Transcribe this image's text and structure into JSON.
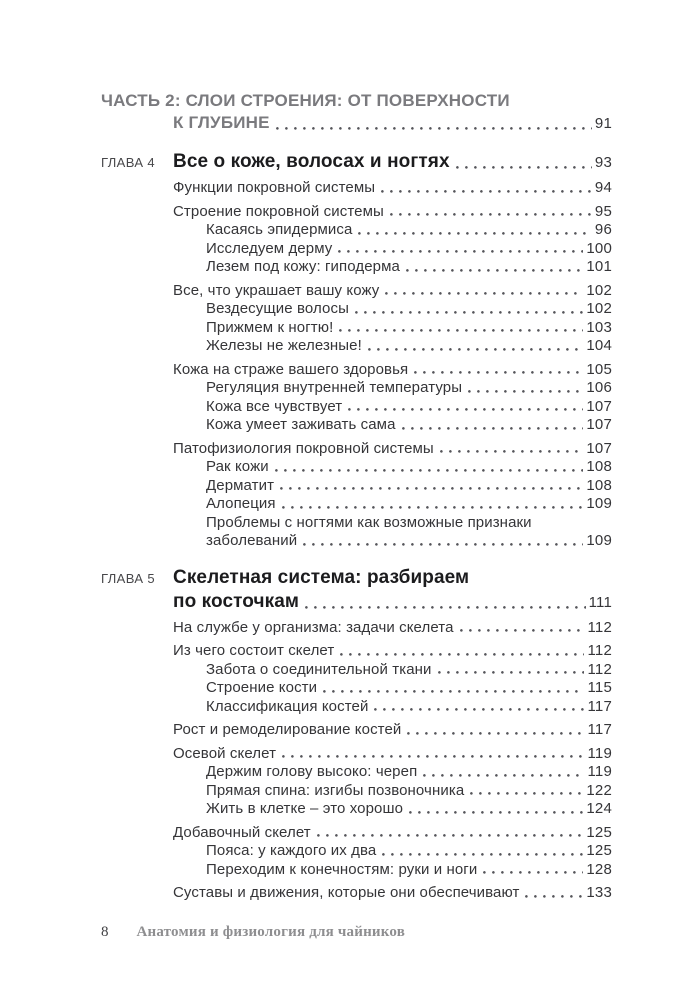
{
  "colors": {
    "part_color": "#7a7a7e",
    "title_color": "#1c1c1e",
    "label_color": "#47474a",
    "entry_color": "#353538",
    "dot_color": "#55555a",
    "folio_color": "#3f3f42",
    "running_title_color": "#8e8e90"
  },
  "part": {
    "line1": "ЧАСТЬ 2: СЛОИ СТРОЕНИЯ: ОТ ПОВЕРХНОСТИ",
    "line2": "К ГЛУБИНЕ",
    "page": "91"
  },
  "chapters": [
    {
      "label": "ГЛАВА 4",
      "title_lines": [
        "Все о коже, волосах и ногтях"
      ],
      "page": "93",
      "entries": [
        {
          "level": 1,
          "lines": [
            "Функции покровной системы"
          ],
          "page": "94"
        },
        {
          "level": 1,
          "lines": [
            "Строение покровной системы"
          ],
          "page": "95"
        },
        {
          "level": 2,
          "lines": [
            "Касаясь эпидермиса"
          ],
          "page": "96"
        },
        {
          "level": 2,
          "lines": [
            "Исследуем дерму"
          ],
          "page": "100"
        },
        {
          "level": 2,
          "lines": [
            "Лезем под кожу: гиподерма"
          ],
          "page": "101"
        },
        {
          "level": 1,
          "lines": [
            "Все, что украшает вашу кожу"
          ],
          "page": "102"
        },
        {
          "level": 2,
          "lines": [
            "Вездесущие волосы"
          ],
          "page": "102"
        },
        {
          "level": 2,
          "lines": [
            "Прижмем к ногтю!"
          ],
          "page": "103"
        },
        {
          "level": 2,
          "lines": [
            "Железы не железные!"
          ],
          "page": "104"
        },
        {
          "level": 1,
          "lines": [
            "Кожа на страже вашего здоровья"
          ],
          "page": "105"
        },
        {
          "level": 2,
          "lines": [
            "Регуляция внутренней температуры"
          ],
          "page": "106"
        },
        {
          "level": 2,
          "lines": [
            "Кожа все чувствует"
          ],
          "page": "107"
        },
        {
          "level": 2,
          "lines": [
            "Кожа умеет заживать сама"
          ],
          "page": "107"
        },
        {
          "level": 1,
          "lines": [
            "Патофизиология покровной системы"
          ],
          "page": "107"
        },
        {
          "level": 2,
          "lines": [
            "Рак кожи"
          ],
          "page": "108"
        },
        {
          "level": 2,
          "lines": [
            "Дерматит"
          ],
          "page": "108"
        },
        {
          "level": 2,
          "lines": [
            "Алопеция"
          ],
          "page": "109"
        },
        {
          "level": 2,
          "lines": [
            "Проблемы с ногтями как возможные признаки",
            "заболеваний"
          ],
          "page": "109"
        }
      ]
    },
    {
      "label": "ГЛАВА 5",
      "title_lines": [
        "Скелетная система: разбираем",
        "по косточкам"
      ],
      "page": "111",
      "entries": [
        {
          "level": 1,
          "lines": [
            "На службе у организма: задачи скелета"
          ],
          "page": "112"
        },
        {
          "level": 1,
          "lines": [
            "Из чего состоит скелет"
          ],
          "page": "112"
        },
        {
          "level": 2,
          "lines": [
            "Забота о соединительной ткани"
          ],
          "page": "112"
        },
        {
          "level": 2,
          "lines": [
            "Строение кости"
          ],
          "page": "115"
        },
        {
          "level": 2,
          "lines": [
            "Классификация костей"
          ],
          "page": "117"
        },
        {
          "level": 1,
          "lines": [
            "Рост и ремоделирование костей"
          ],
          "page": "117"
        },
        {
          "level": 1,
          "lines": [
            "Осевой скелет"
          ],
          "page": "119"
        },
        {
          "level": 2,
          "lines": [
            "Держим голову высоко: череп"
          ],
          "page": "119"
        },
        {
          "level": 2,
          "lines": [
            "Прямая спина: изгибы позвоночника"
          ],
          "page": "122"
        },
        {
          "level": 2,
          "lines": [
            "Жить в клетке – это хорошо"
          ],
          "page": "124"
        },
        {
          "level": 1,
          "lines": [
            "Добавочный скелет"
          ],
          "page": "125"
        },
        {
          "level": 2,
          "lines": [
            "Пояса: у каждого их два"
          ],
          "page": "125"
        },
        {
          "level": 2,
          "lines": [
            "Переходим к конечностям: руки и ноги"
          ],
          "page": "128"
        },
        {
          "level": 1,
          "lines": [
            "Суставы и движения, которые они обеспечивают"
          ],
          "page": "133"
        }
      ]
    }
  ],
  "footer": {
    "page_number": "8",
    "book_title": "Анатомия и физиология для чайников"
  }
}
